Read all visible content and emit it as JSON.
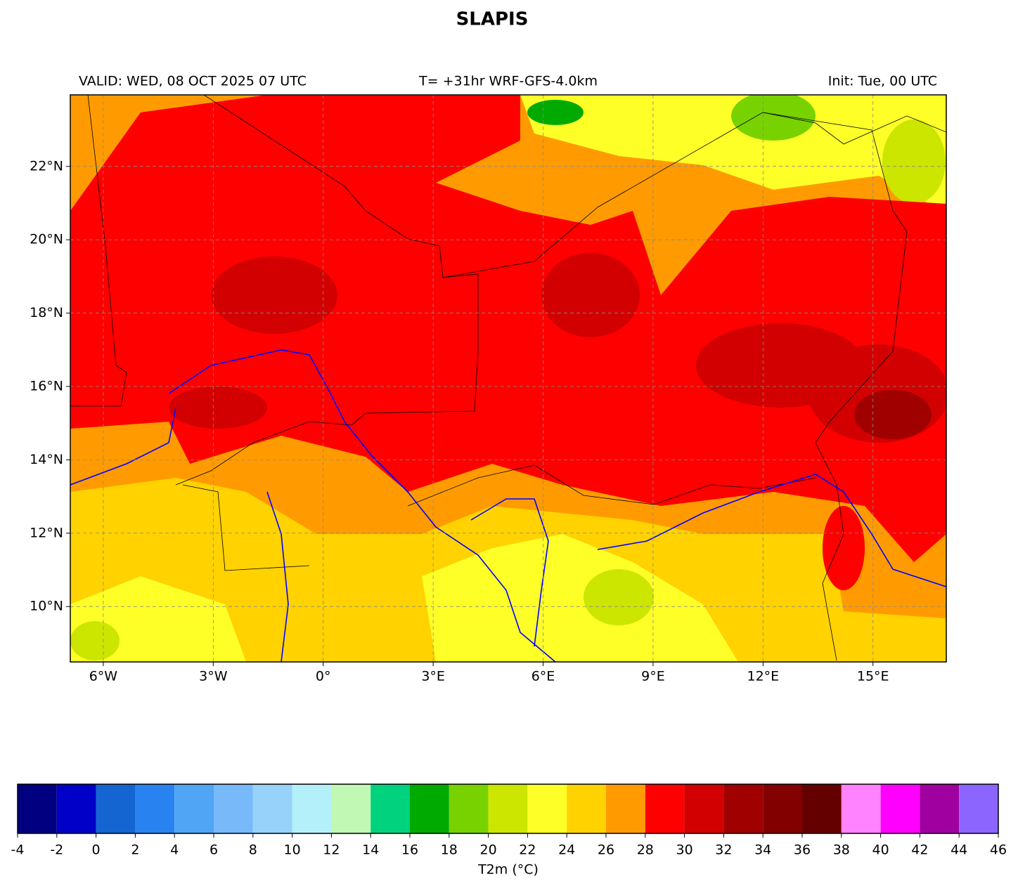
{
  "header": {
    "title": "SLAPIS",
    "valid": "VALID: WED, 08 OCT 2025 07 UTC",
    "run": "T= +31hr WRF-GFS-4.0km",
    "init": "Init: Tue, 00 UTC"
  },
  "map": {
    "xlim": [
      -6.9,
      17.0
    ],
    "ylim": [
      8.49,
      23.95
    ],
    "xticks": [
      {
        "value": -6,
        "label": "6°W"
      },
      {
        "value": -3,
        "label": "3°W"
      },
      {
        "value": 0,
        "label": "0°"
      },
      {
        "value": 3,
        "label": "3°E"
      },
      {
        "value": 6,
        "label": "6°E"
      },
      {
        "value": 9,
        "label": "9°E"
      },
      {
        "value": 12,
        "label": "12°E"
      },
      {
        "value": 15,
        "label": "15°E"
      }
    ],
    "yticks": [
      {
        "value": 10,
        "label": "10°N"
      },
      {
        "value": 12,
        "label": "12°N"
      },
      {
        "value": 14,
        "label": "14°N"
      },
      {
        "value": 16,
        "label": "16°N"
      },
      {
        "value": 18,
        "label": "18°N"
      },
      {
        "value": 20,
        "label": "20°N"
      },
      {
        "value": 22,
        "label": "22°N"
      }
    ],
    "grid": true
  },
  "colorbar": {
    "label": "T2m (°C)",
    "bounds": [
      -4,
      -2,
      0,
      2,
      4,
      6,
      8,
      10,
      12,
      14,
      16,
      18,
      20,
      22,
      24,
      26,
      28,
      30,
      32,
      34,
      36,
      38,
      40,
      42,
      44,
      46
    ],
    "colors": [
      "#000080",
      "#0000c8",
      "#1464d2",
      "#2882f0",
      "#50a5f5",
      "#78b9fa",
      "#96d2fa",
      "#b4f0fa",
      "#c0f8b4",
      "#00d27d",
      "#00aa00",
      "#78d200",
      "#cce600",
      "#ffff28",
      "#ffd200",
      "#ff9b00",
      "#ff0000",
      "#d20000",
      "#a00000",
      "#820000",
      "#640000",
      "#ff82ff",
      "#ff00ff",
      "#a000a0",
      "#8c64ff"
    ]
  }
}
